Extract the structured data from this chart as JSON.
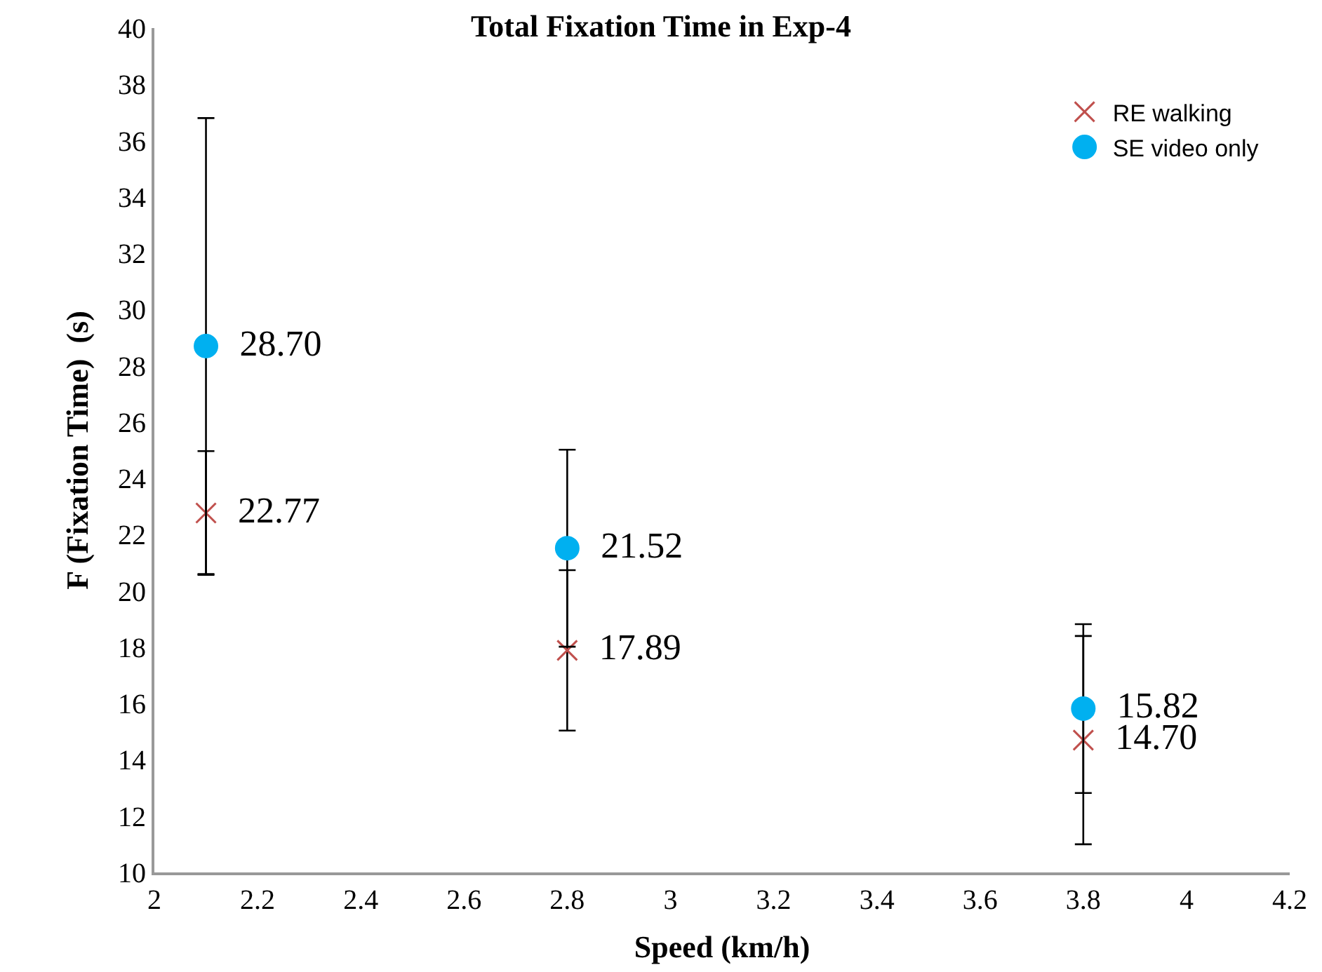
{
  "chart_data": {
    "type": "scatter",
    "title": "Total Fixation Time in Exp-4",
    "xlabel": "Speed (km/h)",
    "ylabel": "F (Fixation Time)  (s)",
    "x": [
      2.1,
      2.8,
      3.8
    ],
    "series": [
      {
        "name": "RE walking",
        "color": "#c0504d",
        "marker": "cross",
        "values": [
          22.77,
          17.89,
          14.7
        ],
        "errors": [
          2.2,
          2.85,
          3.7
        ],
        "value_labels": [
          "22.77",
          "17.89",
          "14.70"
        ]
      },
      {
        "name": "SE video only",
        "color": "#00b0f0",
        "marker": "circle",
        "values": [
          28.7,
          21.52,
          15.82
        ],
        "errors": [
          8.1,
          3.5,
          3.0
        ],
        "value_labels": [
          "28.70",
          "21.52",
          "15.82"
        ]
      }
    ],
    "xlim": [
      2,
      4.2
    ],
    "xticks": [
      2,
      2.2,
      2.4,
      2.6,
      2.8,
      3,
      3.2,
      3.4,
      3.6,
      3.8,
      4,
      4.2
    ],
    "ylim": [
      10,
      40
    ],
    "yticks": [
      10,
      12,
      14,
      16,
      18,
      20,
      22,
      24,
      26,
      28,
      30,
      32,
      34,
      36,
      38,
      40
    ],
    "legend": "top right"
  }
}
